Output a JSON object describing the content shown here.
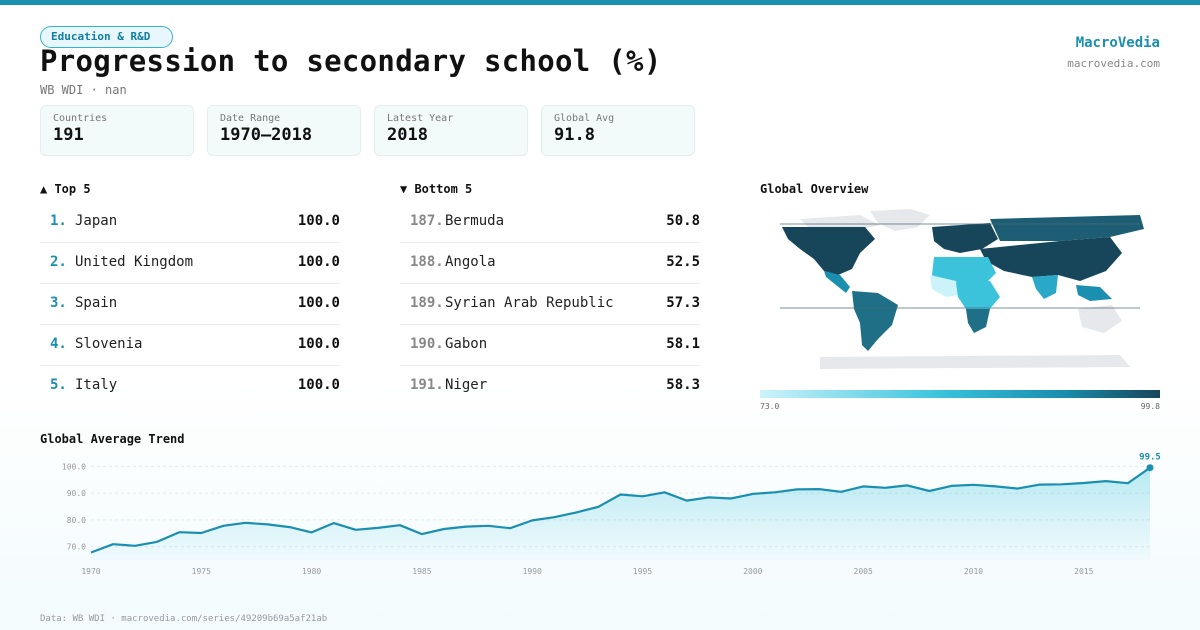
{
  "badge": "Education & R&D",
  "title": "Progression to secondary school (%)",
  "subtitle": "WB WDI · nan",
  "brand": {
    "name": "MacroVedia",
    "url": "macrovedia.com"
  },
  "stats": [
    {
      "label": "Countries",
      "value": "191"
    },
    {
      "label": "Date Range",
      "value": "1970–2018"
    },
    {
      "label": "Latest Year",
      "value": "2018"
    },
    {
      "label": "Global Avg",
      "value": "91.8"
    }
  ],
  "top5": {
    "heading": "▲ Top 5",
    "rows": [
      {
        "rank": "1.",
        "name": "Japan",
        "value": "100.0"
      },
      {
        "rank": "2.",
        "name": "United Kingdom",
        "value": "100.0"
      },
      {
        "rank": "3.",
        "name": "Spain",
        "value": "100.0"
      },
      {
        "rank": "4.",
        "name": "Slovenia",
        "value": "100.0"
      },
      {
        "rank": "5.",
        "name": "Italy",
        "value": "100.0"
      }
    ]
  },
  "bottom5": {
    "heading": "▼ Bottom 5",
    "rows": [
      {
        "rank": "187.",
        "name": "Bermuda",
        "value": "50.8"
      },
      {
        "rank": "188.",
        "name": "Angola",
        "value": "52.5"
      },
      {
        "rank": "189.",
        "name": "Syrian Arab Republic",
        "value": "57.3"
      },
      {
        "rank": "190.",
        "name": "Gabon",
        "value": "58.1"
      },
      {
        "rank": "191.",
        "name": "Niger",
        "value": "58.3"
      }
    ]
  },
  "map": {
    "heading": "Global Overview",
    "legend_min": "73.0",
    "legend_max": "99.8",
    "colors": {
      "low": "#ccf3fa",
      "mid": "#3bc3dc",
      "high": "#1a8fb0",
      "max": "#17465a",
      "nodata": "#e6e8eb"
    }
  },
  "trend_heading": "Global Average Trend",
  "footer": "Data: WB WDI · macrovedia.com/series/49209b69a5af21ab",
  "chart_data": {
    "type": "area",
    "title": "Global Average Trend",
    "x": [
      1970,
      1971,
      1972,
      1973,
      1974,
      1975,
      1976,
      1977,
      1978,
      1979,
      1980,
      1981,
      1982,
      1983,
      1984,
      1985,
      1986,
      1987,
      1988,
      1989,
      1990,
      1991,
      1992,
      1993,
      1994,
      1995,
      1996,
      1997,
      1998,
      1999,
      2000,
      2001,
      2002,
      2003,
      2004,
      2005,
      2006,
      2007,
      2008,
      2009,
      2010,
      2011,
      2012,
      2013,
      2014,
      2015,
      2016,
      2017,
      2018
    ],
    "series": [
      {
        "values": [
          67.8,
          70.9,
          70.3,
          71.8,
          75.4,
          75.1,
          77.8,
          78.9,
          78.3,
          77.3,
          75.3,
          78.8,
          76.3,
          77.0,
          78.0,
          74.7,
          76.6,
          77.5,
          77.8,
          76.9,
          79.8,
          81.0,
          82.8,
          84.9,
          89.5,
          88.8,
          90.3,
          87.2,
          88.4,
          88.0,
          89.7,
          90.3,
          91.4,
          91.5,
          90.5,
          92.5,
          92.0,
          92.9,
          90.8,
          92.7,
          93.1,
          92.5,
          91.7,
          93.2,
          93.3,
          93.8,
          94.5,
          93.7,
          99.5
        ]
      }
    ],
    "yticks": [
      70,
      80,
      90,
      100
    ],
    "xticks": [
      1970,
      1975,
      1980,
      1985,
      1990,
      1995,
      2000,
      2005,
      2010,
      2015
    ],
    "ylim": [
      65,
      105
    ],
    "xlim": [
      1970,
      2018
    ],
    "last_label": "99.5",
    "grid": true,
    "color": "#1a8fb0"
  }
}
